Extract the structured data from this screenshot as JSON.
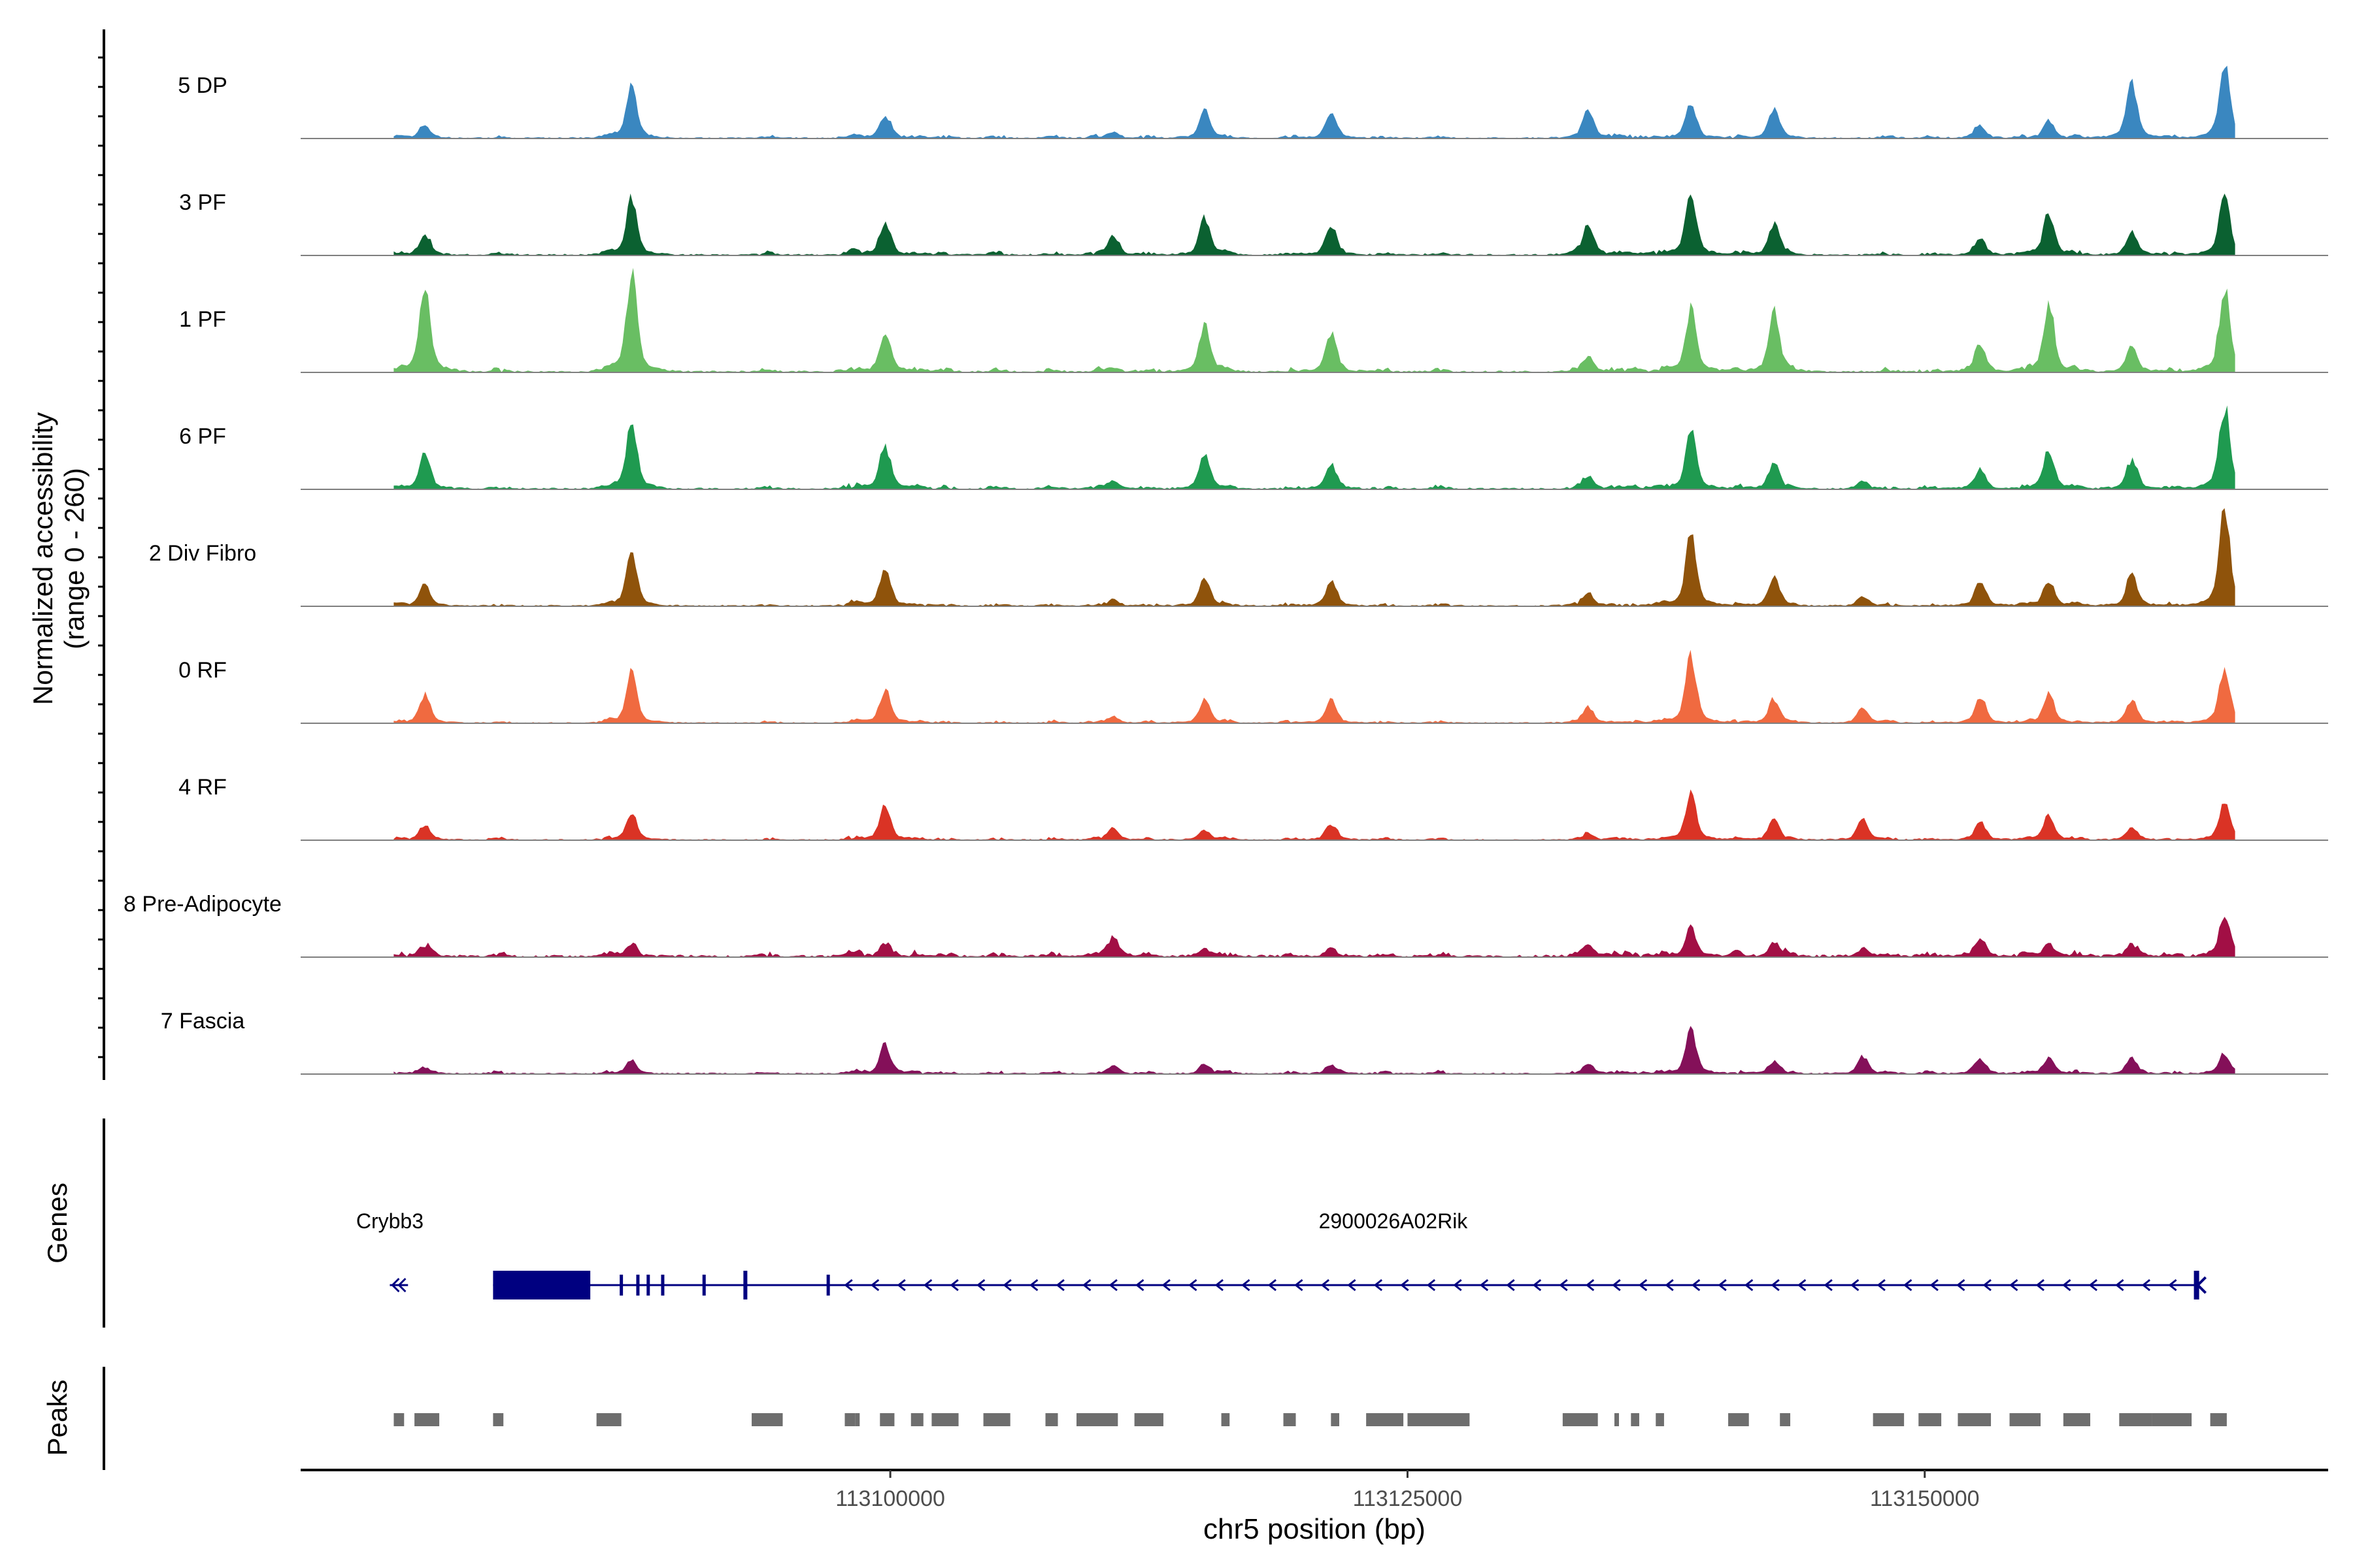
{
  "chart_data": {
    "type": "area",
    "title": "",
    "chromosome": "chr5",
    "xlabel": "chr5 position (bp)",
    "ylabel_line1": "Normalized accessibility",
    "ylabel_line2": "(range 0 - 260)",
    "ylim": [
      0,
      260
    ],
    "xlim": [
      113071500,
      113169500
    ],
    "region_end": 113165000,
    "x_ticks": [
      113100000,
      113125000,
      113150000
    ],
    "x_tick_labels": [
      "113100000",
      "113125000",
      "113150000"
    ],
    "peak_positions": [
      113077500,
      113087500,
      113099750,
      113110800,
      113115200,
      113121300,
      113133750,
      113138700,
      113142700,
      113147000,
      113152700,
      113156000,
      113160000,
      113164500
    ],
    "tracks": [
      {
        "name": "5 DP",
        "color": "#3a87c0",
        "peaks": [
          30,
          130,
          58,
          15,
          70,
          65,
          70,
          90,
          70,
          0,
          30,
          45,
          140,
          180
        ],
        "noise": 6
      },
      {
        "name": "3 PF",
        "color": "#0b6131",
        "peaks": [
          50,
          145,
          80,
          50,
          95,
          75,
          75,
          165,
          80,
          0,
          40,
          110,
          55,
          150
        ],
        "noise": 7
      },
      {
        "name": "1 PF",
        "color": "#69be63",
        "peaks": [
          220,
          255,
          100,
          10,
          120,
          95,
          35,
          165,
          150,
          0,
          70,
          180,
          60,
          210
        ],
        "noise": 8
      },
      {
        "name": "6 PF",
        "color": "#1f9a50",
        "peaks": [
          90,
          180,
          110,
          20,
          90,
          60,
          30,
          150,
          65,
          20,
          45,
          100,
          70,
          210
        ],
        "noise": 7
      },
      {
        "name": "2 Div Fibro",
        "color": "#8f530b",
        "peaks": [
          50,
          140,
          95,
          15,
          70,
          60,
          30,
          195,
          70,
          25,
          60,
          65,
          80,
          250
        ],
        "noise": 6
      },
      {
        "name": "0 RF",
        "color": "#f06a40",
        "peaks": [
          70,
          130,
          85,
          15,
          60,
          55,
          40,
          175,
          60,
          40,
          65,
          75,
          55,
          140
        ],
        "noise": 5
      },
      {
        "name": "4 RF",
        "color": "#da3325",
        "peaks": [
          35,
          70,
          85,
          30,
          25,
          40,
          15,
          120,
          50,
          55,
          45,
          65,
          30,
          100
        ],
        "noise": 5
      },
      {
        "name": "8 Pre-Adipocyte",
        "color": "#a20f45",
        "peaks": [
          20,
          35,
          25,
          50,
          20,
          15,
          25,
          75,
          30,
          20,
          40,
          35,
          30,
          100
        ],
        "noise": 10
      },
      {
        "name": "7 Fascia",
        "color": "#841059",
        "peaks": [
          15,
          35,
          70,
          20,
          25,
          20,
          25,
          110,
          30,
          45,
          35,
          40,
          35,
          50
        ],
        "noise": 6
      }
    ],
    "genes_label": "Genes",
    "genes": [
      {
        "name": "Crybb3",
        "start": 113076000,
        "end": 113076500,
        "strand": "-"
      },
      {
        "name": "2900026A02Rik",
        "start": 113080800,
        "end": 113163200,
        "strand": "-"
      }
    ],
    "peaks_label": "Peaks",
    "peak_regions": [
      [
        113076000,
        113076500
      ],
      [
        113077000,
        113078200
      ],
      [
        113080800,
        113081300
      ],
      [
        113085800,
        113087000
      ],
      [
        113093300,
        113094800
      ],
      [
        113097800,
        113098300
      ],
      [
        113098300,
        113098500
      ],
      [
        113099500,
        113100200
      ],
      [
        113101000,
        113101600
      ],
      [
        113102000,
        113103300
      ],
      [
        113104500,
        113105800
      ],
      [
        113107500,
        113108100
      ],
      [
        113109000,
        113111000
      ],
      [
        113111800,
        113113200
      ],
      [
        113116000,
        113116400
      ],
      [
        113119000,
        113119600
      ],
      [
        113121300,
        113121700
      ],
      [
        113123000,
        113124800
      ],
      [
        113125000,
        113128000
      ],
      [
        113132500,
        113134200
      ],
      [
        113135000,
        113135200
      ],
      [
        113135800,
        113136200
      ],
      [
        113137000,
        113137400
      ],
      [
        113140500,
        113141500
      ],
      [
        113143000,
        113143500
      ],
      [
        113147500,
        113149000
      ],
      [
        113149700,
        113150800
      ],
      [
        113151600,
        113153200
      ],
      [
        113154100,
        113155600
      ],
      [
        113156700,
        113158000
      ],
      [
        113159400,
        113161000
      ],
      [
        113161000,
        113162900
      ],
      [
        113163800,
        113164600
      ]
    ]
  }
}
